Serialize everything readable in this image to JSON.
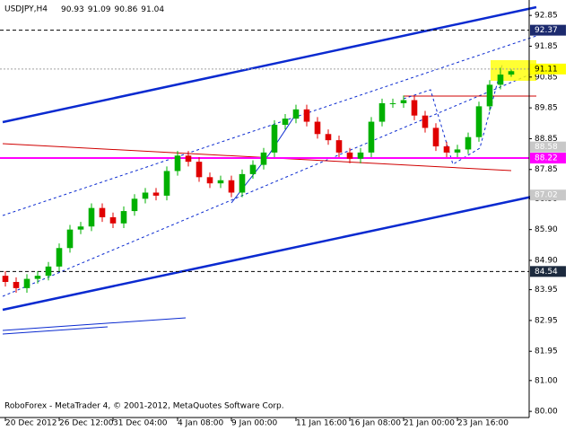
{
  "chart_data": {
    "type": "candlestick",
    "title": "USDJPY,H4",
    "footer": "RoboForex - MetaTrader 4, © 2001-2012, MetaQuotes Software Corp.",
    "up_color": "#00b000",
    "down_color": "#e00000",
    "open": [
      84.4,
      84.2,
      84.0,
      84.3,
      84.4,
      84.7,
      85.3,
      85.9,
      86.0,
      86.6,
      86.3,
      86.1,
      86.5,
      86.9,
      87.1,
      87.0,
      87.8,
      88.3,
      88.1,
      87.6,
      87.4,
      87.5,
      87.1,
      87.7,
      88.0,
      88.4,
      89.3,
      89.5,
      89.8,
      89.4,
      89.0,
      88.8,
      88.4,
      88.2,
      88.4,
      89.4,
      90.0,
      90.0,
      90.1,
      89.6,
      89.2,
      88.6,
      88.4,
      88.5,
      88.9,
      89.9,
      90.6,
      90.93
    ],
    "high": [
      84.55,
      84.35,
      84.45,
      84.55,
      84.85,
      85.45,
      86.05,
      86.15,
      86.75,
      86.75,
      86.45,
      86.65,
      87.05,
      87.25,
      87.25,
      87.95,
      88.45,
      88.45,
      88.25,
      87.75,
      87.65,
      87.65,
      87.85,
      88.15,
      88.55,
      89.45,
      89.65,
      89.95,
      89.95,
      89.55,
      89.15,
      88.95,
      88.55,
      88.55,
      89.55,
      90.15,
      90.15,
      90.25,
      90.25,
      89.75,
      89.35,
      88.75,
      88.65,
      89.05,
      90.05,
      90.75,
      91.15,
      91.09
    ],
    "low": [
      84.05,
      83.85,
      83.85,
      84.15,
      84.25,
      84.55,
      85.15,
      85.75,
      85.85,
      86.15,
      85.95,
      85.95,
      86.35,
      86.75,
      86.85,
      86.85,
      87.65,
      87.95,
      87.45,
      87.25,
      87.25,
      86.95,
      86.95,
      87.55,
      87.85,
      88.25,
      89.15,
      89.35,
      89.25,
      88.85,
      88.65,
      88.25,
      88.05,
      88.05,
      88.25,
      89.25,
      89.85,
      89.85,
      89.45,
      89.05,
      88.45,
      88.25,
      88.25,
      88.35,
      88.75,
      89.75,
      90.45,
      90.86
    ],
    "close": [
      84.2,
      84.0,
      84.3,
      84.4,
      84.7,
      85.3,
      85.9,
      86.0,
      86.6,
      86.3,
      86.1,
      86.5,
      86.9,
      87.1,
      87.0,
      87.8,
      88.3,
      88.1,
      87.6,
      87.4,
      87.5,
      87.1,
      87.7,
      88.0,
      88.4,
      89.3,
      89.5,
      89.8,
      89.4,
      89.0,
      88.8,
      88.4,
      88.2,
      88.4,
      89.4,
      90.0,
      90.0,
      90.1,
      89.6,
      89.2,
      88.6,
      88.4,
      88.5,
      88.9,
      89.9,
      90.6,
      90.93,
      91.04
    ],
    "xlim": [
      -0.5,
      48.5
    ],
    "xticks": [
      {
        "value": 0,
        "label": "20 Dec 2012"
      },
      {
        "value": 5,
        "label": "26 Dec 12:00"
      },
      {
        "value": 10,
        "label": "31 Dec 04:00"
      },
      {
        "value": 16,
        "label": "4 Jan 08:00"
      },
      {
        "value": 21,
        "label": "9 Jan 00:00"
      },
      {
        "value": 27,
        "label": "11 Jan 16:00"
      },
      {
        "value": 32,
        "label": "16 Jan 08:00"
      },
      {
        "value": 37,
        "label": "21 Jan 00:00"
      },
      {
        "value": 42,
        "label": "23 Jan 16:00"
      }
    ],
    "ylim": [
      79.8,
      93.35
    ],
    "yticks": [
      92.85,
      91.85,
      90.85,
      89.85,
      88.85,
      87.85,
      {
        "value": 86.9,
        "label": "86.90"
      },
      {
        "value": 85.9,
        "label": "85.90"
      },
      {
        "value": 84.9,
        "label": "84.90"
      },
      83.95,
      82.95,
      81.95,
      {
        "value": 81,
        "label": "81.00"
      },
      {
        "value": 80,
        "label": "80.00"
      }
    ],
    "levels": [
      {
        "value": 92.37,
        "label_bg": "#1c2a6e",
        "label_color": "#ffffff",
        "line": "#000000",
        "dash": "4 3"
      },
      {
        "value": 91.11,
        "label_bg": "#ffff00",
        "label_color": "#000000",
        "line": "#a0a0a0",
        "dash": "2 2"
      },
      {
        "value": 88.58,
        "label_bg": "#c8c8c8",
        "label_color": "#ffffff",
        "line": null,
        "dash": null
      },
      {
        "value": 88.22,
        "label_bg": "#ff00ff",
        "label_color": "#ffffff",
        "line": "#ff00ff",
        "dash": null
      },
      {
        "value": 87.02,
        "label_bg": "#c8c8c8",
        "label_color": "#ffffff",
        "line": null,
        "dash": null
      },
      {
        "value": 84.54,
        "label_bg": "#1c2a3e",
        "label_color": "#ffffff",
        "line": "#000000",
        "dash": "4 3"
      }
    ]
  }
}
